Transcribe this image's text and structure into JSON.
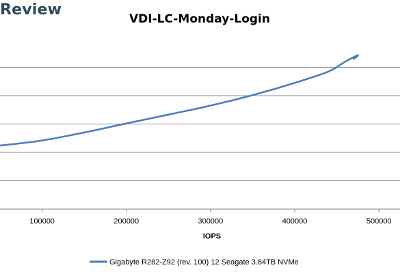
{
  "brand": {
    "text": "Review"
  },
  "chart_data": {
    "type": "line",
    "title": "VDI-LC-Monday-Login",
    "xlabel": "IOPS",
    "ylabel": "",
    "xlim": [
      50000,
      525000
    ],
    "ylim": [
      0,
      6
    ],
    "x_ticks": [
      100000,
      200000,
      300000,
      400000,
      500000
    ],
    "x_tick_labels": [
      "100000",
      "200000",
      "300000",
      "400000",
      "500000"
    ],
    "y_gridlines": [
      0,
      1,
      2,
      3,
      4,
      5
    ],
    "grid": true,
    "legend_position": "bottom",
    "series": [
      {
        "name": "Gigabyte R282-Z92 (rev. 100) 12 Seagate 3.84TB NVMe",
        "color": "#4a7ebb",
        "x": [
          50000,
          100000,
          150000,
          200000,
          250000,
          300000,
          350000,
          400000,
          440000,
          460000,
          475000,
          470000,
          474000
        ],
        "y": [
          2.24,
          2.42,
          2.7,
          3.02,
          3.33,
          3.65,
          4.02,
          4.45,
          4.85,
          5.2,
          5.43,
          5.3,
          5.38
        ]
      }
    ]
  }
}
